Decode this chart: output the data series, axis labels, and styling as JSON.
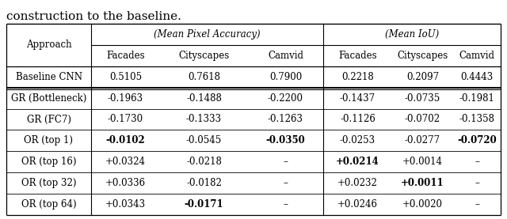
{
  "caption": "construction to the baseline.",
  "col_headers_l2": [
    "Facades",
    "Cityscapes",
    "Camvid",
    "Facades",
    "Cityscapes",
    "Camvid"
  ],
  "rows": [
    {
      "label": "Baseline CNN",
      "values": [
        "0.5105",
        "0.7618",
        "0.7900",
        "0.2218",
        "0.2097",
        "0.4443"
      ],
      "bold": [
        false,
        false,
        false,
        false,
        false,
        false
      ],
      "double_below": true
    },
    {
      "label": "GR (Bottleneck)",
      "values": [
        "-0.1963",
        "-0.1488",
        "-0.2200",
        "-0.1437",
        "-0.0735",
        "-0.1981"
      ],
      "bold": [
        false,
        false,
        false,
        false,
        false,
        false
      ],
      "double_below": false
    },
    {
      "label": "GR (FC7)",
      "values": [
        "-0.1730",
        "-0.1333",
        "-0.1263",
        "-0.1126",
        "-0.0702",
        "-0.1358"
      ],
      "bold": [
        false,
        false,
        false,
        false,
        false,
        false
      ],
      "double_below": false
    },
    {
      "label": "OR (top 1)",
      "values": [
        "-0.0102",
        "-0.0545",
        "-0.0350",
        "-0.0253",
        "-0.0277",
        "-0.0720"
      ],
      "bold": [
        true,
        false,
        true,
        false,
        false,
        true
      ],
      "double_below": false
    },
    {
      "label": "OR (top 16)",
      "values": [
        "+0.0324",
        "-0.0218",
        "–",
        "+0.0214",
        "+0.0014",
        "–"
      ],
      "bold": [
        false,
        false,
        false,
        true,
        false,
        false
      ],
      "double_below": false
    },
    {
      "label": "OR (top 32)",
      "values": [
        "+0.0336",
        "-0.0182",
        "–",
        "+0.0232",
        "+0.0011",
        "–"
      ],
      "bold": [
        false,
        false,
        false,
        false,
        true,
        false
      ],
      "double_below": false
    },
    {
      "label": "OR (top 64)",
      "values": [
        "+0.0343",
        "-0.0171",
        "–",
        "+0.0246",
        "+0.0020",
        "–"
      ],
      "bold": [
        false,
        true,
        false,
        false,
        false,
        false
      ],
      "double_below": false
    }
  ],
  "figsize": [
    6.4,
    2.77
  ],
  "dpi": 100,
  "caption_fontsize": 11,
  "table_fontsize": 8.5
}
